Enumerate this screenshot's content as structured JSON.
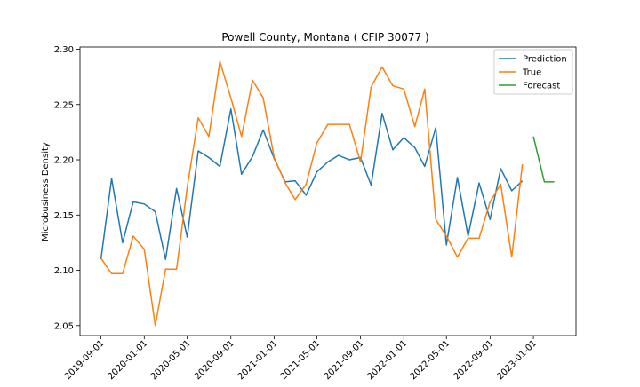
{
  "chart_data": {
    "type": "line",
    "title": "Powell County, Montana ( CFIP 30077 )",
    "xlabel": "",
    "ylabel": "Microbusiness Density",
    "x_ticks": [
      "2019-09-01",
      "2020-01-01",
      "2020-05-01",
      "2020-09-01",
      "2021-01-01",
      "2021-05-01",
      "2021-09-01",
      "2022-01-01",
      "2022-05-01",
      "2022-09-01",
      "2023-01-01"
    ],
    "y_ticks": [
      "2.05",
      "2.10",
      "2.15",
      "2.20",
      "2.25",
      "2.30"
    ],
    "ylim": [
      2.041,
      2.302
    ],
    "xlim": [
      "2019-07-04",
      "2023-05-01"
    ],
    "grid": false,
    "legend_position": "top-right",
    "series": [
      {
        "name": "Prediction",
        "color": "#1f77b4",
        "x": [
          "2019-09-01",
          "2019-10-01",
          "2019-11-01",
          "2019-12-01",
          "2020-01-01",
          "2020-02-01",
          "2020-03-01",
          "2020-04-01",
          "2020-05-01",
          "2020-06-01",
          "2020-07-01",
          "2020-08-01",
          "2020-09-01",
          "2020-10-01",
          "2020-11-01",
          "2020-12-01",
          "2021-01-01",
          "2021-02-01",
          "2021-03-01",
          "2021-04-01",
          "2021-05-01",
          "2021-06-01",
          "2021-07-01",
          "2021-08-01",
          "2021-09-01",
          "2021-10-01",
          "2021-11-01",
          "2021-12-01",
          "2022-01-01",
          "2022-02-01",
          "2022-03-01",
          "2022-04-01",
          "2022-05-01",
          "2022-06-01",
          "2022-07-01",
          "2022-08-01",
          "2022-09-01",
          "2022-10-01",
          "2022-11-01",
          "2022-12-01"
        ],
        "values": [
          2.11,
          2.183,
          2.125,
          2.162,
          2.16,
          2.153,
          2.11,
          2.174,
          2.13,
          2.208,
          2.202,
          2.194,
          2.246,
          2.187,
          2.203,
          2.227,
          2.201,
          2.18,
          2.181,
          2.168,
          2.189,
          2.198,
          2.204,
          2.2,
          2.202,
          2.177,
          2.242,
          2.209,
          2.22,
          2.211,
          2.194,
          2.229,
          2.123,
          2.184,
          2.131,
          2.179,
          2.146,
          2.192,
          2.172,
          2.181
        ]
      },
      {
        "name": "True",
        "color": "#ff7f0e",
        "x": [
          "2019-09-01",
          "2019-10-01",
          "2019-11-01",
          "2019-12-01",
          "2020-01-01",
          "2020-02-01",
          "2020-03-01",
          "2020-04-01",
          "2020-05-01",
          "2020-06-01",
          "2020-07-01",
          "2020-08-01",
          "2020-09-01",
          "2020-10-01",
          "2020-11-01",
          "2020-12-01",
          "2021-01-01",
          "2021-02-01",
          "2021-03-01",
          "2021-04-01",
          "2021-05-01",
          "2021-06-01",
          "2021-07-01",
          "2021-08-01",
          "2021-09-01",
          "2021-10-01",
          "2021-11-01",
          "2021-12-01",
          "2022-01-01",
          "2022-02-01",
          "2022-03-01",
          "2022-04-01",
          "2022-05-01",
          "2022-06-01",
          "2022-07-01",
          "2022-08-01",
          "2022-09-01",
          "2022-10-01",
          "2022-11-01",
          "2022-12-01"
        ],
        "values": [
          2.111,
          2.097,
          2.097,
          2.131,
          2.119,
          2.05,
          2.101,
          2.101,
          2.175,
          2.238,
          2.221,
          2.289,
          2.256,
          2.221,
          2.272,
          2.256,
          2.202,
          2.179,
          2.164,
          2.178,
          2.215,
          2.232,
          2.232,
          2.232,
          2.198,
          2.266,
          2.284,
          2.267,
          2.264,
          2.23,
          2.264,
          2.146,
          2.131,
          2.112,
          2.129,
          2.129,
          2.162,
          2.178,
          2.112,
          2.196
        ]
      },
      {
        "name": "Forecast",
        "color": "#2ca02c",
        "x": [
          "2023-01-01",
          "2023-02-01",
          "2023-03-01"
        ],
        "values": [
          2.221,
          2.18,
          2.18
        ]
      }
    ]
  }
}
